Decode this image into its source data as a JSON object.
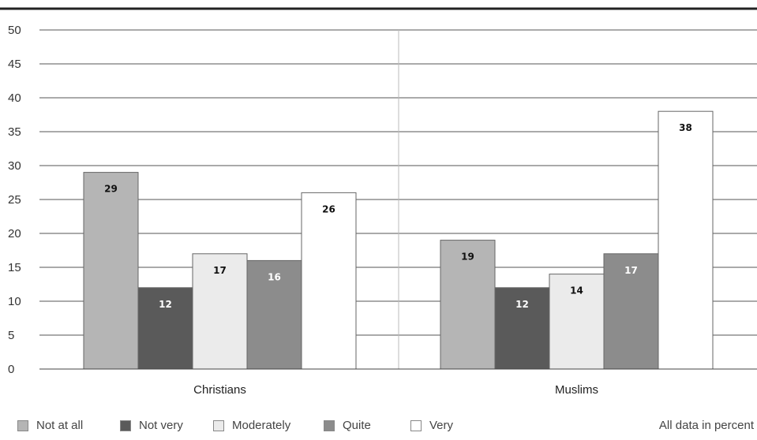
{
  "chart_data": {
    "type": "bar",
    "categories": [
      "Christians",
      "Muslims"
    ],
    "series": [
      {
        "name": "Not at all",
        "values": [
          29,
          19
        ],
        "color": "#b5b5b5"
      },
      {
        "name": "Not very",
        "values": [
          12,
          12
        ],
        "color": "#5a5a5a"
      },
      {
        "name": "Moderately",
        "values": [
          17,
          14
        ],
        "color": "#ebebeb"
      },
      {
        "name": "Quite",
        "values": [
          16,
          17
        ],
        "color": "#8c8c8c"
      },
      {
        "name": "Very",
        "values": [
          26,
          38
        ],
        "color": "#ffffff"
      }
    ],
    "ylim": [
      0,
      50
    ],
    "yticks": [
      0,
      5,
      10,
      15,
      20,
      25,
      30,
      35,
      40,
      45,
      50
    ],
    "grid": true,
    "legend_position": "bottom-left",
    "note": "All data in percent"
  }
}
